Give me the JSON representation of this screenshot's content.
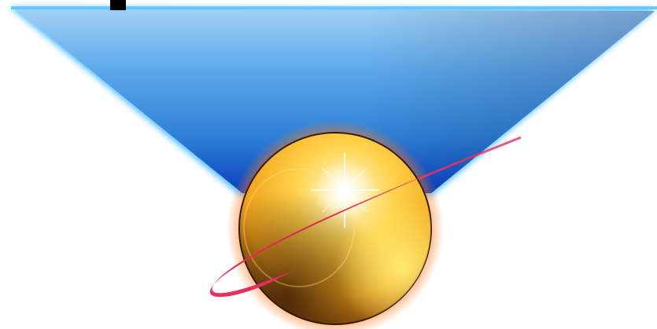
{
  "logo": {
    "icon": "globe-orbit-logo",
    "colors": {
      "triangle_light": "#9fd0f5",
      "triangle_mid": "#2d7fd6",
      "triangle_dark": "#0a3fc0",
      "triangle_edge_glow": "#3fb6ff",
      "sphere_highlight": "#ffffff",
      "sphere_light": "#ffd24a",
      "sphere_mid": "#f0a319",
      "sphere_dark": "#7a3d0a",
      "sphere_glow": "#ff7a1a",
      "orbit": "#e8315f"
    }
  }
}
